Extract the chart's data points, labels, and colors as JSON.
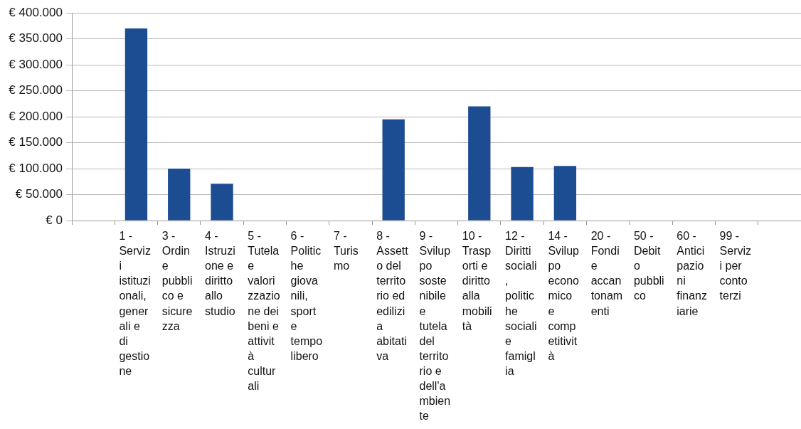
{
  "chart_data": {
    "type": "bar",
    "categories": [
      null,
      "1 - Servizi istituzionali, generali e di gestione",
      "3 - Ordine pubblico e sicurezza",
      "4 - Istruzione e diritto allo studio",
      "5 - Tutela e valorizzazione dei beni e attività culturali",
      "6 - Politiche giovanili, sport e tempo libero",
      "7 - Turismo",
      "8 - Assetto del territorio ed edilizia abitativa",
      "9 - Sviluppo sostenibile e tutela del territorio e dell'ambiente",
      "10 - Trasporti e diritto alla mobilità",
      "12 - Diritti sociali, politiche sociali e famiglia",
      "14 - Sviluppo economico e competitività",
      "20 - Fondi e accantonamenti",
      "50 - Debito pubblico",
      "60 - Anticipazioni finanziarie",
      "99 - Servizi per conto terzi",
      null
    ],
    "values": [
      null,
      370000,
      100000,
      71000,
      0,
      0,
      0,
      195000,
      0,
      220000,
      103000,
      105000,
      0,
      0,
      0,
      0,
      null
    ],
    "color": "#1c4d92",
    "ylim": [
      0,
      400000
    ],
    "yticks": [
      {
        "value": 0,
        "label": "€ 0"
      },
      {
        "value": 50000,
        "label": "€ 50.000"
      },
      {
        "value": 100000,
        "label": "€ 100.000"
      },
      {
        "value": 150000,
        "label": "€ 150.000"
      },
      {
        "value": 200000,
        "label": "€ 200.000"
      },
      {
        "value": 250000,
        "label": "€ 250.000"
      },
      {
        "value": 300000,
        "label": "€ 300.000"
      },
      {
        "value": 350000,
        "label": "€ 350.000"
      },
      {
        "value": 400000,
        "label": "€ 400.000"
      }
    ],
    "grid": "y"
  }
}
